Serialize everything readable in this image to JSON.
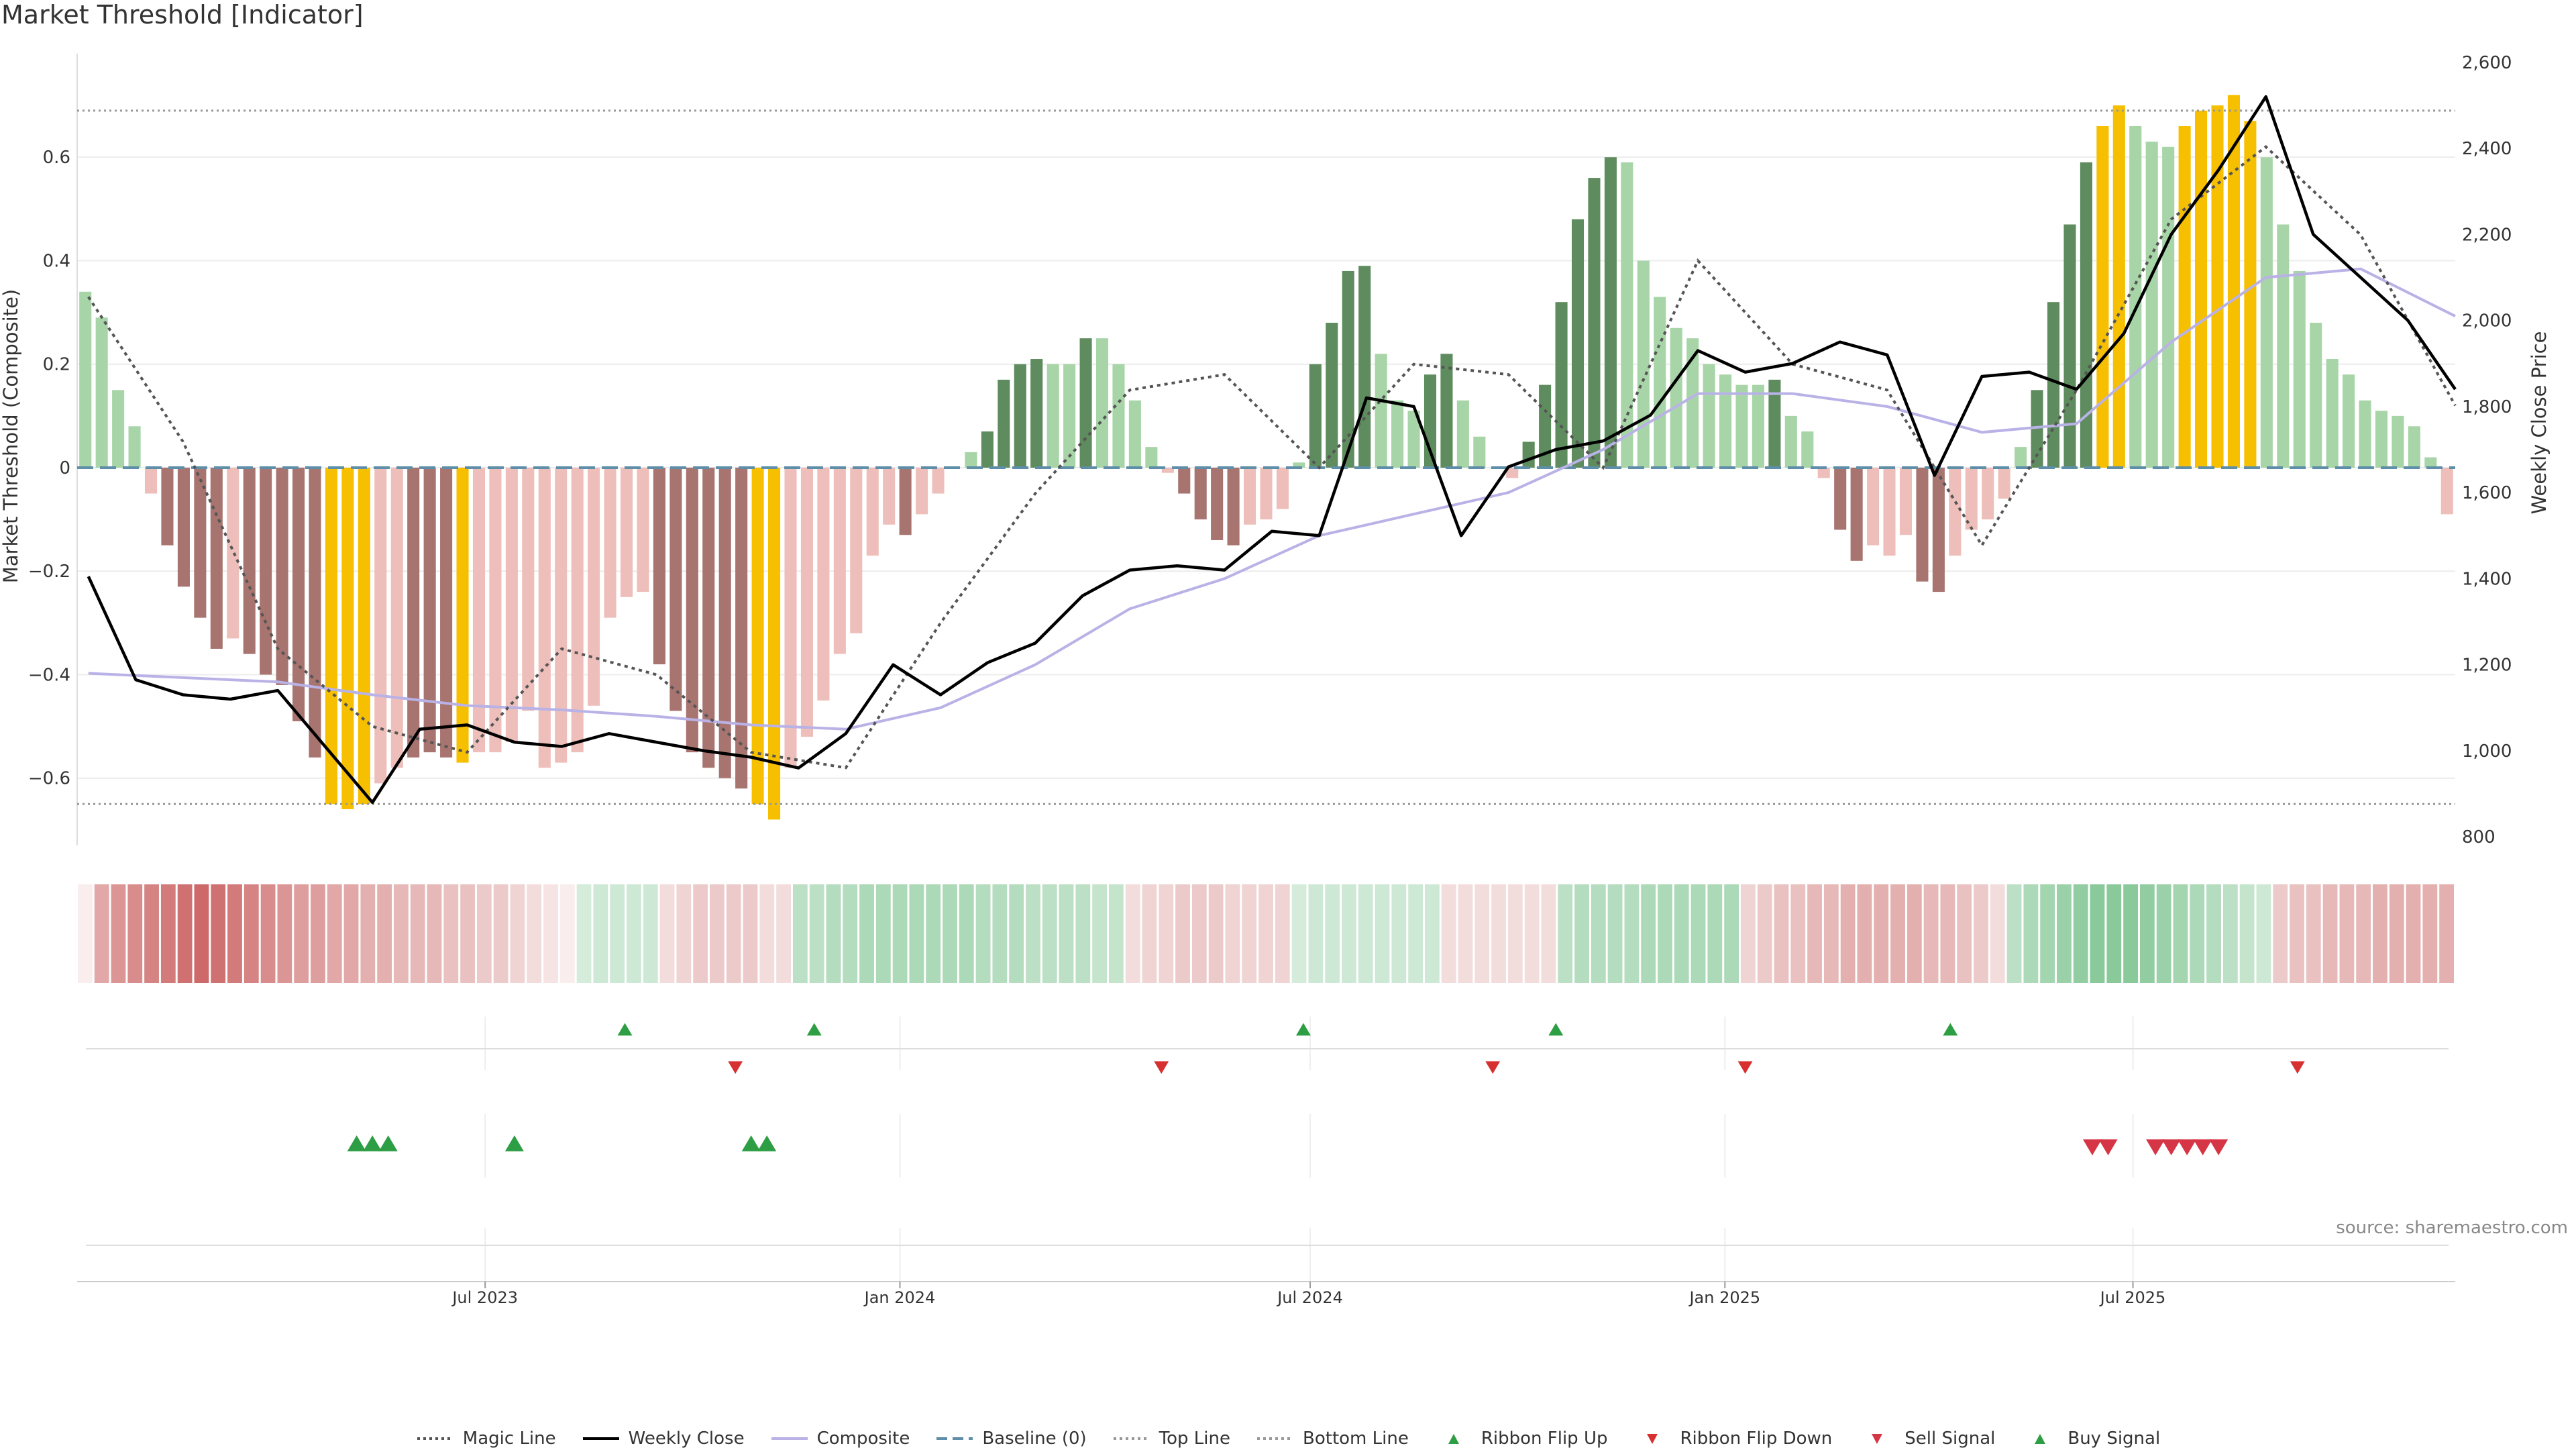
{
  "header": {
    "title": "Market Threshold [Indicator]"
  },
  "source_text": "source: sharemaestro.com",
  "colors": {
    "bull_dark": "#5e8c5e",
    "bull_light": "#a8d5a8",
    "bear_dark": "#a87470",
    "bear_light": "#eebfba",
    "extreme": "#f6c000",
    "close_line": "#000000",
    "composite_line": "#b9b2e6",
    "magic_line": "#555555",
    "baseline": "#5f8fa8",
    "threshold_line": "#999999",
    "flip_up": "#2e9e44",
    "flip_down": "#d63030",
    "buy_signal": "#2e9e44",
    "sell_signal": "#d63545"
  },
  "legend": [
    {
      "label": "Magic Line",
      "kind": "dotted",
      "color": "#555555"
    },
    {
      "label": "Weekly Close",
      "kind": "solid",
      "color": "#000000"
    },
    {
      "label": "Composite",
      "kind": "solid",
      "color": "#b9b2e6"
    },
    {
      "label": "Baseline (0)",
      "kind": "dashed",
      "color": "#5f8fa8"
    },
    {
      "label": "Top Line",
      "kind": "dotted",
      "color": "#999999"
    },
    {
      "label": "Bottom Line",
      "kind": "dotted",
      "color": "#999999"
    },
    {
      "label": "Ribbon Flip Up",
      "kind": "tri-up",
      "color": "#2e9e44"
    },
    {
      "label": "Ribbon Flip Down",
      "kind": "tri-down",
      "color": "#d63030"
    },
    {
      "label": "Sell Signal",
      "kind": "tri-down",
      "color": "#d63545"
    },
    {
      "label": "Buy Signal",
      "kind": "tri-up",
      "color": "#2e9e44"
    }
  ],
  "chart_data": {
    "type": "bar",
    "xaxis": {
      "start": "2023-01-01",
      "end": "2025-11-21",
      "tick_labels": [
        "Jul 2023",
        "Jan 2024",
        "Jul 2024",
        "Jan 2025",
        "Jul 2025"
      ],
      "tick_dates": [
        "2023-07-01",
        "2024-01-01",
        "2024-07-01",
        "2025-01-01",
        "2025-07-01"
      ]
    },
    "left_axis": {
      "label": "Market Threshold (Composite)",
      "range": [
        -0.73,
        0.8
      ],
      "ticks": [
        0.6,
        0.4,
        0.2,
        0,
        -0.2,
        -0.4,
        -0.6
      ],
      "tick_labels": [
        "0.6",
        "0.4",
        "0.2",
        "0",
        "−0.2",
        "−0.4",
        "−0.6"
      ]
    },
    "right_axis": {
      "label": "Weekly Close Price",
      "range": [
        780,
        2620
      ],
      "ticks": [
        2600,
        2400,
        2200,
        2000,
        1800,
        1600,
        1400,
        1200,
        1000,
        800
      ],
      "tick_labels": [
        "2,600",
        "2,400",
        "2,200",
        "2,000",
        "1,800",
        "1,600",
        "1,400",
        "1,200",
        "1,000",
        "800"
      ]
    },
    "top_line": 0.69,
    "bottom_line": -0.65,
    "baseline": 0,
    "grid": true,
    "legend_position": "bottom",
    "bars": {
      "values": [
        0.34,
        0.29,
        0.15,
        0.08,
        -0.05,
        -0.15,
        -0.23,
        -0.29,
        -0.35,
        -0.33,
        -0.36,
        -0.4,
        -0.42,
        -0.49,
        -0.56,
        -0.65,
        -0.66,
        -0.65,
        -0.61,
        -0.58,
        -0.56,
        -0.55,
        -0.56,
        -0.57,
        -0.55,
        -0.55,
        -0.53,
        -0.47,
        -0.58,
        -0.57,
        -0.55,
        -0.46,
        -0.29,
        -0.25,
        -0.24,
        -0.38,
        -0.47,
        -0.55,
        -0.58,
        -0.6,
        -0.62,
        -0.65,
        -0.68,
        -0.58,
        -0.52,
        -0.45,
        -0.36,
        -0.32,
        -0.17,
        -0.11,
        -0.13,
        -0.09,
        -0.05,
        0.0,
        0.03,
        0.07,
        0.17,
        0.2,
        0.21,
        0.2,
        0.2,
        0.25,
        0.25,
        0.2,
        0.13,
        0.04,
        -0.01,
        -0.05,
        -0.1,
        -0.14,
        -0.15,
        -0.11,
        -0.1,
        -0.08,
        0.01,
        0.2,
        0.28,
        0.38,
        0.39,
        0.22,
        0.13,
        0.11,
        0.18,
        0.22,
        0.13,
        0.06,
        0.0,
        -0.02,
        0.05,
        0.16,
        0.32,
        0.48,
        0.56,
        0.6,
        0.59,
        0.4,
        0.33,
        0.27,
        0.25,
        0.2,
        0.18,
        0.16,
        0.16,
        0.17,
        0.1,
        0.07,
        -0.02,
        -0.12,
        -0.18,
        -0.15,
        -0.17,
        -0.13,
        -0.22,
        -0.24,
        -0.17,
        -0.12,
        -0.1,
        -0.06,
        0.04,
        0.15,
        0.32,
        0.47,
        0.59,
        0.66,
        0.7,
        0.66,
        0.63,
        0.62,
        0.66,
        0.69,
        0.7,
        0.72,
        0.67,
        0.6,
        0.47,
        0.38,
        0.28,
        0.21,
        0.18,
        0.13,
        0.11,
        0.1,
        0.08,
        0.02,
        -0.09
      ],
      "styles": [
        "bl",
        "bl",
        "bl",
        "bl",
        "rl",
        "rd",
        "rd",
        "rd",
        "rd",
        "rl",
        "rd",
        "rd",
        "rd",
        "rd",
        "rd",
        "x",
        "x",
        "x",
        "rl",
        "rl",
        "rd",
        "rd",
        "rd",
        "x",
        "rl",
        "rl",
        "rl",
        "rl",
        "rl",
        "rl",
        "rl",
        "rl",
        "rl",
        "rl",
        "rl",
        "rd",
        "rd",
        "rd",
        "rd",
        "rd",
        "rd",
        "x",
        "x",
        "rl",
        "rl",
        "rl",
        "rl",
        "rl",
        "rl",
        "rl",
        "rd",
        "rl",
        "rl",
        "rl",
        "bl",
        "bd",
        "bd",
        "bd",
        "bd",
        "bl",
        "bl",
        "bd",
        "bl",
        "bl",
        "bl",
        "bl",
        "rl",
        "rd",
        "rd",
        "rd",
        "rd",
        "rl",
        "rl",
        "rl",
        "bl",
        "bd",
        "bd",
        "bd",
        "bd",
        "bl",
        "bl",
        "bl",
        "bd",
        "bd",
        "bl",
        "bl",
        "bl",
        "rl",
        "bd",
        "bd",
        "bd",
        "bd",
        "bd",
        "bd",
        "bl",
        "bl",
        "bl",
        "bl",
        "bl",
        "bl",
        "bl",
        "bl",
        "bl",
        "bd",
        "bl",
        "bl",
        "rl",
        "rd",
        "rd",
        "rl",
        "rl",
        "rl",
        "rd",
        "rd",
        "rl",
        "rl",
        "rl",
        "rl",
        "bl",
        "bd",
        "bd",
        "bd",
        "bd",
        "x",
        "x",
        "bl",
        "bl",
        "bl",
        "x",
        "x",
        "x",
        "x",
        "x",
        "bl",
        "bl",
        "bl",
        "bl",
        "bl",
        "bl",
        "bl",
        "bl",
        "bl",
        "bl",
        "bl",
        "rl"
      ]
    },
    "series": [
      {
        "name": "Weekly Close",
        "x": [
          "2023-01-06",
          "2023-01-27",
          "2023-02-17",
          "2023-03-10",
          "2023-03-31",
          "2023-04-21",
          "2023-05-12",
          "2023-06-02",
          "2023-06-23",
          "2023-07-14",
          "2023-08-04",
          "2023-08-25",
          "2023-09-15",
          "2023-10-06",
          "2023-10-27",
          "2023-11-17",
          "2023-12-08",
          "2023-12-29",
          "2024-01-19",
          "2024-02-09",
          "2024-03-01",
          "2024-03-22",
          "2024-04-12",
          "2024-05-03",
          "2024-05-24",
          "2024-06-14",
          "2024-07-05",
          "2024-07-26",
          "2024-08-16",
          "2024-09-06",
          "2024-09-27",
          "2024-10-18",
          "2024-11-08",
          "2024-11-29",
          "2024-12-20",
          "2025-01-10",
          "2025-01-31",
          "2025-02-21",
          "2025-03-14",
          "2025-04-04",
          "2025-04-25",
          "2025-05-16",
          "2025-06-06",
          "2025-06-27",
          "2025-07-18",
          "2025-08-08",
          "2025-08-29",
          "2025-09-19",
          "2025-10-10",
          "2025-10-31",
          "2025-11-21"
        ],
        "y": [
          1405,
          1165,
          1130,
          1120,
          1140,
          1010,
          880,
          1050,
          1060,
          1020,
          1010,
          1040,
          1020,
          1000,
          985,
          960,
          1040,
          1200,
          1130,
          1205,
          1250,
          1360,
          1420,
          1430,
          1420,
          1510,
          1500,
          1820,
          1800,
          1500,
          1660,
          1700,
          1720,
          1780,
          1930,
          1880,
          1900,
          1950,
          1920,
          1640,
          1870,
          1880,
          1840,
          1970,
          2200,
          2350,
          2520,
          2200,
          2100,
          2000,
          1840
        ]
      },
      {
        "name": "Composite",
        "x": [
          "2023-01-06",
          "2023-02-17",
          "2023-03-31",
          "2023-05-12",
          "2023-06-23",
          "2023-08-04",
          "2023-09-15",
          "2023-10-27",
          "2023-12-08",
          "2024-01-19",
          "2024-03-01",
          "2024-04-12",
          "2024-05-24",
          "2024-07-05",
          "2024-08-16",
          "2024-09-27",
          "2024-11-08",
          "2024-12-20",
          "2025-01-31",
          "2025-03-14",
          "2025-04-25",
          "2025-06-06",
          "2025-07-18",
          "2025-08-29",
          "2025-10-10",
          "2025-11-21"
        ],
        "y": [
          1180,
          1170,
          1160,
          1130,
          1105,
          1095,
          1080,
          1060,
          1050,
          1100,
          1200,
          1330,
          1400,
          1500,
          1550,
          1600,
          1700,
          1830,
          1830,
          1800,
          1740,
          1760,
          1950,
          2100,
          2120,
          2010
        ]
      },
      {
        "name": "Magic Line",
        "x": [
          "2023-01-06",
          "2023-02-17",
          "2023-03-31",
          "2023-05-12",
          "2023-06-23",
          "2023-08-04",
          "2023-09-15",
          "2023-10-27",
          "2023-12-08",
          "2024-01-19",
          "2024-03-01",
          "2024-04-12",
          "2024-05-24",
          "2024-07-05",
          "2024-08-16",
          "2024-09-27",
          "2024-11-08",
          "2024-12-20",
          "2025-01-31",
          "2025-03-14",
          "2025-04-25",
          "2025-06-06",
          "2025-07-18",
          "2025-08-29",
          "2025-10-10",
          "2025-11-21"
        ],
        "y": [
          0.33,
          0.05,
          -0.35,
          -0.5,
          -0.55,
          -0.35,
          -0.4,
          -0.55,
          -0.58,
          -0.3,
          -0.05,
          0.15,
          0.18,
          0.0,
          0.2,
          0.18,
          0.0,
          0.4,
          0.2,
          0.15,
          -0.15,
          0.15,
          0.48,
          0.62,
          0.45,
          0.12
        ]
      }
    ],
    "ribbon": {
      "values": [
        -0.1,
        -0.5,
        -0.6,
        -0.65,
        -0.7,
        -0.75,
        -0.8,
        -0.85,
        -0.8,
        -0.75,
        -0.7,
        -0.65,
        -0.6,
        -0.55,
        -0.55,
        -0.5,
        -0.5,
        -0.45,
        -0.45,
        -0.4,
        -0.4,
        -0.4,
        -0.35,
        -0.35,
        -0.3,
        -0.3,
        -0.25,
        -0.2,
        -0.15,
        -0.1,
        0.25,
        0.3,
        0.3,
        0.3,
        0.3,
        -0.2,
        -0.25,
        -0.3,
        -0.3,
        -0.3,
        -0.3,
        -0.2,
        -0.2,
        0.4,
        0.4,
        0.45,
        0.45,
        0.5,
        0.5,
        0.5,
        0.5,
        0.5,
        0.5,
        0.5,
        0.45,
        0.45,
        0.45,
        0.4,
        0.4,
        0.4,
        0.4,
        0.35,
        0.35,
        -0.2,
        -0.25,
        -0.25,
        -0.3,
        -0.3,
        -0.3,
        -0.25,
        -0.25,
        -0.25,
        -0.25,
        0.25,
        0.3,
        0.3,
        0.3,
        0.3,
        0.3,
        0.3,
        0.3,
        0.3,
        -0.2,
        -0.2,
        -0.2,
        -0.2,
        -0.2,
        -0.2,
        -0.2,
        0.4,
        0.45,
        0.45,
        0.45,
        0.45,
        0.5,
        0.5,
        0.5,
        0.5,
        0.5,
        0.5,
        -0.25,
        -0.3,
        -0.35,
        -0.35,
        -0.4,
        -0.4,
        -0.45,
        -0.45,
        -0.45,
        -0.45,
        -0.45,
        -0.4,
        -0.4,
        -0.35,
        -0.3,
        -0.2,
        0.4,
        0.5,
        0.55,
        0.6,
        0.65,
        0.7,
        0.7,
        0.7,
        0.65,
        0.6,
        0.55,
        0.5,
        0.45,
        0.4,
        0.35,
        0.3,
        -0.3,
        -0.35,
        -0.35,
        -0.4,
        -0.4,
        -0.4,
        -0.45,
        -0.45,
        -0.45,
        -0.45,
        -0.45
      ]
    },
    "flip_up_dates": [
      "2023-09-01",
      "2023-11-24",
      "2024-06-28",
      "2024-10-18",
      "2025-04-11"
    ],
    "flip_down_dates": [
      "2023-10-20",
      "2024-04-26",
      "2024-09-20",
      "2025-01-10",
      "2025-09-12"
    ],
    "buy_signal_dates": [
      "2023-05-05",
      "2023-05-12",
      "2023-05-19",
      "2023-07-14",
      "2023-10-27",
      "2023-11-03"
    ],
    "sell_signal_dates": [
      "2025-06-13",
      "2025-06-20",
      "2025-07-11",
      "2025-07-18",
      "2025-07-25",
      "2025-08-01",
      "2025-08-08"
    ]
  }
}
